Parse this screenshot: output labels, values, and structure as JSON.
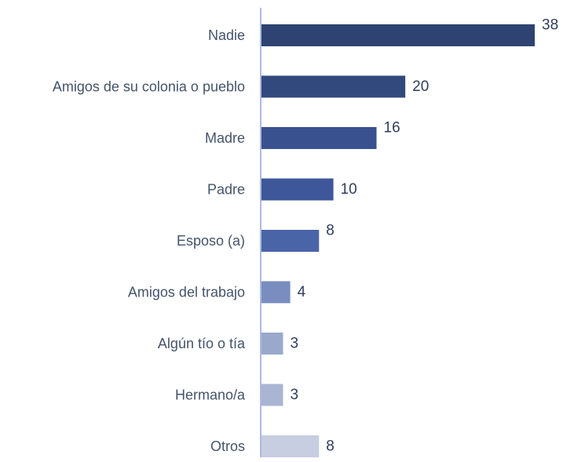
{
  "chart_data": {
    "type": "bar",
    "orientation": "horizontal",
    "categories": [
      "Nadie",
      "Amigos de su colonia o pueblo",
      "Madre",
      "Padre",
      "Esposo (a)",
      "Amigos del trabajo",
      "Algún tío o tía",
      "Hermano/a",
      "Otros"
    ],
    "values": [
      38,
      20,
      16,
      10,
      8,
      4,
      3,
      3,
      8
    ],
    "data_labels": [
      "38",
      "20",
      "16",
      "10",
      "8",
      "4",
      "3",
      "3",
      "8"
    ],
    "bar_colors": [
      "#2e4371",
      "#32497d",
      "#3a5190",
      "#3e569a",
      "#4a64a8",
      "#7a8dbf",
      "#9aa8cc",
      "#a9b5d3",
      "#c7cee2"
    ],
    "axis_color": "#8fa3d6",
    "title": "",
    "xlabel": "",
    "ylabel": "",
    "xlim": [
      0,
      38
    ],
    "grid": false,
    "legend": false
  }
}
